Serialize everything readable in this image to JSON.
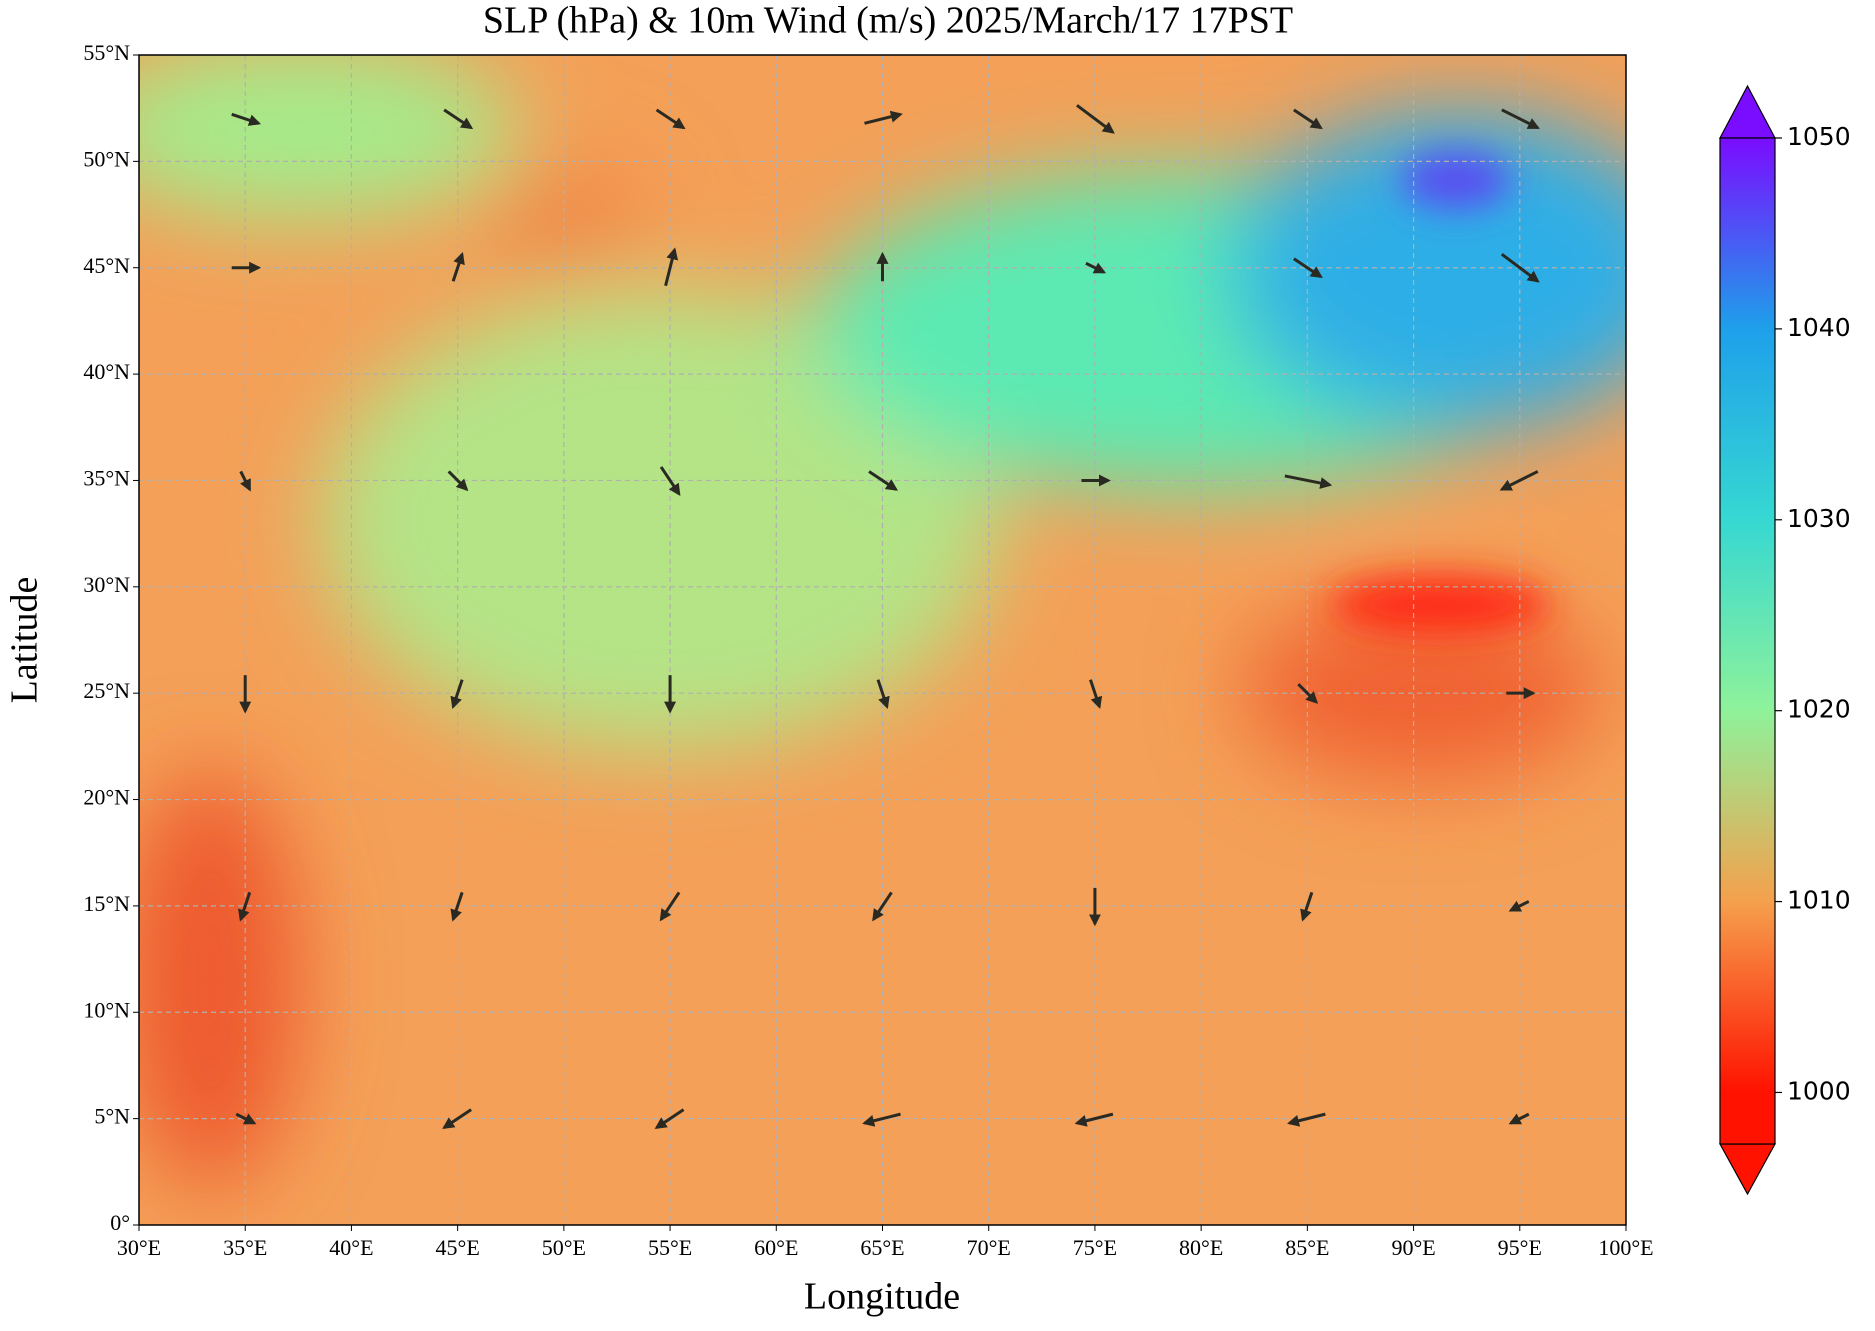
{
  "chart_data": {
    "type": "quiver-map",
    "title": "SLP (hPa) & 10m Wind (m/s)  2025/March/17  17PST",
    "xlabel": "Longitude",
    "ylabel": "Latitude",
    "xlim": [
      30,
      100
    ],
    "ylim": [
      0,
      55
    ],
    "xticks": [
      {
        "value": 30,
        "label": "30°E"
      },
      {
        "value": 35,
        "label": "35°E"
      },
      {
        "value": 40,
        "label": "40°E"
      },
      {
        "value": 45,
        "label": "45°E"
      },
      {
        "value": 50,
        "label": "50°E"
      },
      {
        "value": 55,
        "label": "55°E"
      },
      {
        "value": 60,
        "label": "60°E"
      },
      {
        "value": 65,
        "label": "65°E"
      },
      {
        "value": 70,
        "label": "70°E"
      },
      {
        "value": 75,
        "label": "75°E"
      },
      {
        "value": 80,
        "label": "80°E"
      },
      {
        "value": 85,
        "label": "85°E"
      },
      {
        "value": 90,
        "label": "90°E"
      },
      {
        "value": 95,
        "label": "95°E"
      },
      {
        "value": 100,
        "label": "100°E"
      }
    ],
    "yticks": [
      {
        "value": 0,
        "label": "0°"
      },
      {
        "value": 5,
        "label": "5°N"
      },
      {
        "value": 10,
        "label": "10°N"
      },
      {
        "value": 15,
        "label": "15°N"
      },
      {
        "value": 20,
        "label": "20°N"
      },
      {
        "value": 25,
        "label": "25°N"
      },
      {
        "value": 30,
        "label": "30°N"
      },
      {
        "value": 35,
        "label": "35°N"
      },
      {
        "value": 40,
        "label": "40°N"
      },
      {
        "value": 45,
        "label": "45°N"
      },
      {
        "value": 50,
        "label": "50°N"
      },
      {
        "value": 55,
        "label": "55°N"
      }
    ],
    "grid": true,
    "colorbar": {
      "clim": [
        997.3,
        1050
      ],
      "ticks": [
        1000,
        1010,
        1020,
        1030,
        1040,
        1050
      ],
      "colors": [
        "#ff1200",
        "#f5a04c",
        "#8ef29a",
        "#36d8d2",
        "#1ea0ea",
        "#7a0cff"
      ]
    },
    "wind": {
      "lon": [
        35,
        45,
        55,
        65,
        75,
        85,
        95
      ],
      "lat": [
        5,
        15,
        25,
        35,
        45,
        52
      ],
      "u": [
        [
          2,
          -3,
          -3,
          -4,
          -4,
          -4,
          -2
        ],
        [
          -1,
          -1,
          -2,
          -2,
          0,
          -1,
          -2
        ],
        [
          0,
          -1,
          0,
          1,
          1,
          2,
          3
        ],
        [
          1,
          2,
          2,
          3,
          3,
          5,
          -4
        ],
        [
          3,
          1,
          1,
          0,
          2,
          3,
          4
        ],
        [
          3,
          3,
          3,
          4,
          4,
          3,
          4
        ]
      ],
      "v": [
        [
          -1,
          -2,
          -2,
          -1,
          -1,
          -1,
          -1
        ],
        [
          -3,
          -3,
          -3,
          -3,
          -4,
          -3,
          -1
        ],
        [
          -4,
          -3,
          -4,
          -3,
          -3,
          -2,
          0
        ],
        [
          -2,
          -2,
          -3,
          -2,
          0,
          -1,
          -2
        ],
        [
          0,
          3,
          4,
          3,
          -1,
          -2,
          -3
        ],
        [
          -1,
          -2,
          -2,
          1,
          -3,
          -2,
          -2
        ]
      ],
      "color": "#2a2a22"
    }
  }
}
